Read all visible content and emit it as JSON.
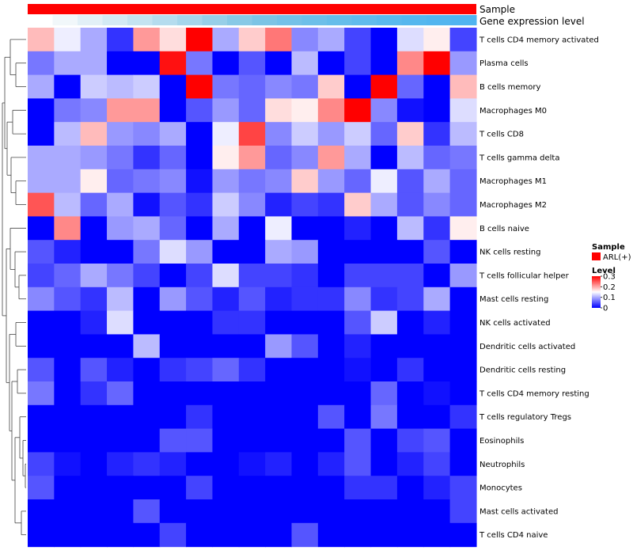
{
  "chart_data": {
    "type": "heatmap",
    "annotations": {
      "sample_label": "Sample",
      "gene_label": "Gene expression level",
      "sample_color": "#ff0000",
      "gene_colors": [
        "#ffffff",
        "#f1f7fa",
        "#e2f0f7",
        "#d3eaf4",
        "#c4e3f1",
        "#b5dcee",
        "#a6d6eb",
        "#97cfe8",
        "#88c9e6",
        "#7cc4e5",
        "#74c1e8",
        "#6dbfe9",
        "#66bdea",
        "#60bbec",
        "#5ab9ed",
        "#55b7ee",
        "#52b5ef",
        "#50b4f0"
      ]
    },
    "legend": {
      "sample_title": "Sample",
      "sample_entry": "ARL(+)",
      "level_title": "Level",
      "ticks": [
        {
          "value": 0.3,
          "label": "0.3"
        },
        {
          "value": 0.2,
          "label": "0.2"
        },
        {
          "value": 0.1,
          "label": "0.1"
        },
        {
          "value": 0.0,
          "label": "0"
        }
      ],
      "range": [
        0,
        0.3
      ]
    },
    "colors": {
      "low": "#0000ff",
      "mid": "#ffffff",
      "high": "#ff0000"
    },
    "rows": [
      "T cells CD4 memory activated",
      "Plasma cells",
      "B cells memory",
      "Macrophages M0",
      "T cells CD8",
      "T cells gamma delta",
      "Macrophages M1",
      "Macrophages M2",
      "B cells naive",
      "NK cells resting",
      "T cells follicular helper",
      "Mast cells resting",
      "NK cells activated",
      "Dendritic cells activated",
      "Dendritic cells resting",
      "T cells CD4 memory resting",
      "T cells regulatory  Tregs",
      "Eosinophils",
      "Neutrophils",
      "Monocytes",
      "Mast cells activated",
      "T cells CD4 naive"
    ],
    "values": [
      [
        0.19,
        0.14,
        0.1,
        0.03,
        0.21,
        0.17,
        0.3,
        0.1,
        0.18,
        0.23,
        0.08,
        0.1,
        0.04,
        0.0,
        0.13,
        0.16,
        0.04
      ],
      [
        0.07,
        0.1,
        0.1,
        0.0,
        0.0,
        0.29,
        0.07,
        0.0,
        0.05,
        0.0,
        0.11,
        0.0,
        0.04,
        0.0,
        0.22,
        0.3,
        0.09
      ],
      [
        0.1,
        0.0,
        0.12,
        0.11,
        0.12,
        0.0,
        0.3,
        0.07,
        0.06,
        0.08,
        0.07,
        0.18,
        0.0,
        0.3,
        0.06,
        0.0,
        0.19
      ],
      [
        0.0,
        0.07,
        0.08,
        0.21,
        0.21,
        0.0,
        0.05,
        0.09,
        0.06,
        0.17,
        0.16,
        0.22,
        0.3,
        0.08,
        0.01,
        0.0,
        0.13
      ],
      [
        0.0,
        0.11,
        0.19,
        0.09,
        0.08,
        0.1,
        0.0,
        0.14,
        0.26,
        0.08,
        0.12,
        0.09,
        0.12,
        0.06,
        0.18,
        0.03,
        0.11
      ],
      [
        0.1,
        0.1,
        0.09,
        0.07,
        0.03,
        0.06,
        0.0,
        0.16,
        0.21,
        0.06,
        0.08,
        0.21,
        0.1,
        0.0,
        0.11,
        0.06,
        0.07
      ],
      [
        0.1,
        0.1,
        0.16,
        0.06,
        0.07,
        0.08,
        0.01,
        0.09,
        0.07,
        0.08,
        0.18,
        0.09,
        0.06,
        0.14,
        0.05,
        0.1,
        0.06
      ],
      [
        0.25,
        0.11,
        0.06,
        0.1,
        0.01,
        0.05,
        0.03,
        0.12,
        0.08,
        0.02,
        0.04,
        0.03,
        0.18,
        0.1,
        0.05,
        0.08,
        0.06
      ],
      [
        0.0,
        0.22,
        0.0,
        0.09,
        0.1,
        0.06,
        0.0,
        0.1,
        0.0,
        0.14,
        0.0,
        0.0,
        0.02,
        0.0,
        0.11,
        0.03,
        0.16
      ],
      [
        0.05,
        0.02,
        0.0,
        0.0,
        0.07,
        0.13,
        0.09,
        0.0,
        0.0,
        0.1,
        0.09,
        0.0,
        0.0,
        0.0,
        0.0,
        0.05,
        0.0
      ],
      [
        0.04,
        0.06,
        0.1,
        0.07,
        0.04,
        0.0,
        0.04,
        0.13,
        0.04,
        0.04,
        0.03,
        0.0,
        0.04,
        0.04,
        0.04,
        0.0,
        0.09
      ],
      [
        0.08,
        0.05,
        0.03,
        0.11,
        0.0,
        0.09,
        0.05,
        0.02,
        0.05,
        0.02,
        0.03,
        0.03,
        0.08,
        0.03,
        0.04,
        0.1,
        0.0
      ],
      [
        0.0,
        0.0,
        0.02,
        0.13,
        0.0,
        0.0,
        0.0,
        0.03,
        0.03,
        0.0,
        0.0,
        0.0,
        0.05,
        0.12,
        0.0,
        0.02,
        0.0
      ],
      [
        0.0,
        0.0,
        0.0,
        0.0,
        0.11,
        0.0,
        0.0,
        0.0,
        0.0,
        0.09,
        0.05,
        0.0,
        0.02,
        0.0,
        0.0,
        0.0,
        0.0
      ],
      [
        0.05,
        0.0,
        0.05,
        0.02,
        0.0,
        0.03,
        0.04,
        0.06,
        0.03,
        0.0,
        0.0,
        0.0,
        0.01,
        0.0,
        0.03,
        0.0,
        0.0
      ],
      [
        0.07,
        0.0,
        0.03,
        0.06,
        0.0,
        0.0,
        0.0,
        0.0,
        0.0,
        0.0,
        0.0,
        0.0,
        0.0,
        0.06,
        0.0,
        0.01,
        0.0
      ],
      [
        0.0,
        0.0,
        0.0,
        0.0,
        0.0,
        0.0,
        0.03,
        0.0,
        0.0,
        0.0,
        0.0,
        0.05,
        0.0,
        0.07,
        0.0,
        0.0,
        0.03
      ],
      [
        0.0,
        0.0,
        0.0,
        0.0,
        0.0,
        0.05,
        0.05,
        0.0,
        0.0,
        0.0,
        0.0,
        0.0,
        0.05,
        0.0,
        0.04,
        0.05,
        0.0
      ],
      [
        0.04,
        0.01,
        0.0,
        0.02,
        0.03,
        0.02,
        0.0,
        0.0,
        0.01,
        0.02,
        0.0,
        0.02,
        0.05,
        0.0,
        0.02,
        0.04,
        0.0
      ],
      [
        0.05,
        0.0,
        0.0,
        0.0,
        0.0,
        0.0,
        0.04,
        0.0,
        0.0,
        0.0,
        0.0,
        0.0,
        0.03,
        0.03,
        0.0,
        0.02,
        0.04
      ],
      [
        0.0,
        0.0,
        0.0,
        0.0,
        0.05,
        0.0,
        0.0,
        0.0,
        0.0,
        0.0,
        0.0,
        0.0,
        0.0,
        0.0,
        0.0,
        0.0,
        0.04
      ],
      [
        0.0,
        0.0,
        0.0,
        0.0,
        0.0,
        0.04,
        0.0,
        0.0,
        0.0,
        0.0,
        0.05,
        0.0,
        0.0,
        0.0,
        0.0,
        0.0,
        0.0
      ]
    ]
  }
}
